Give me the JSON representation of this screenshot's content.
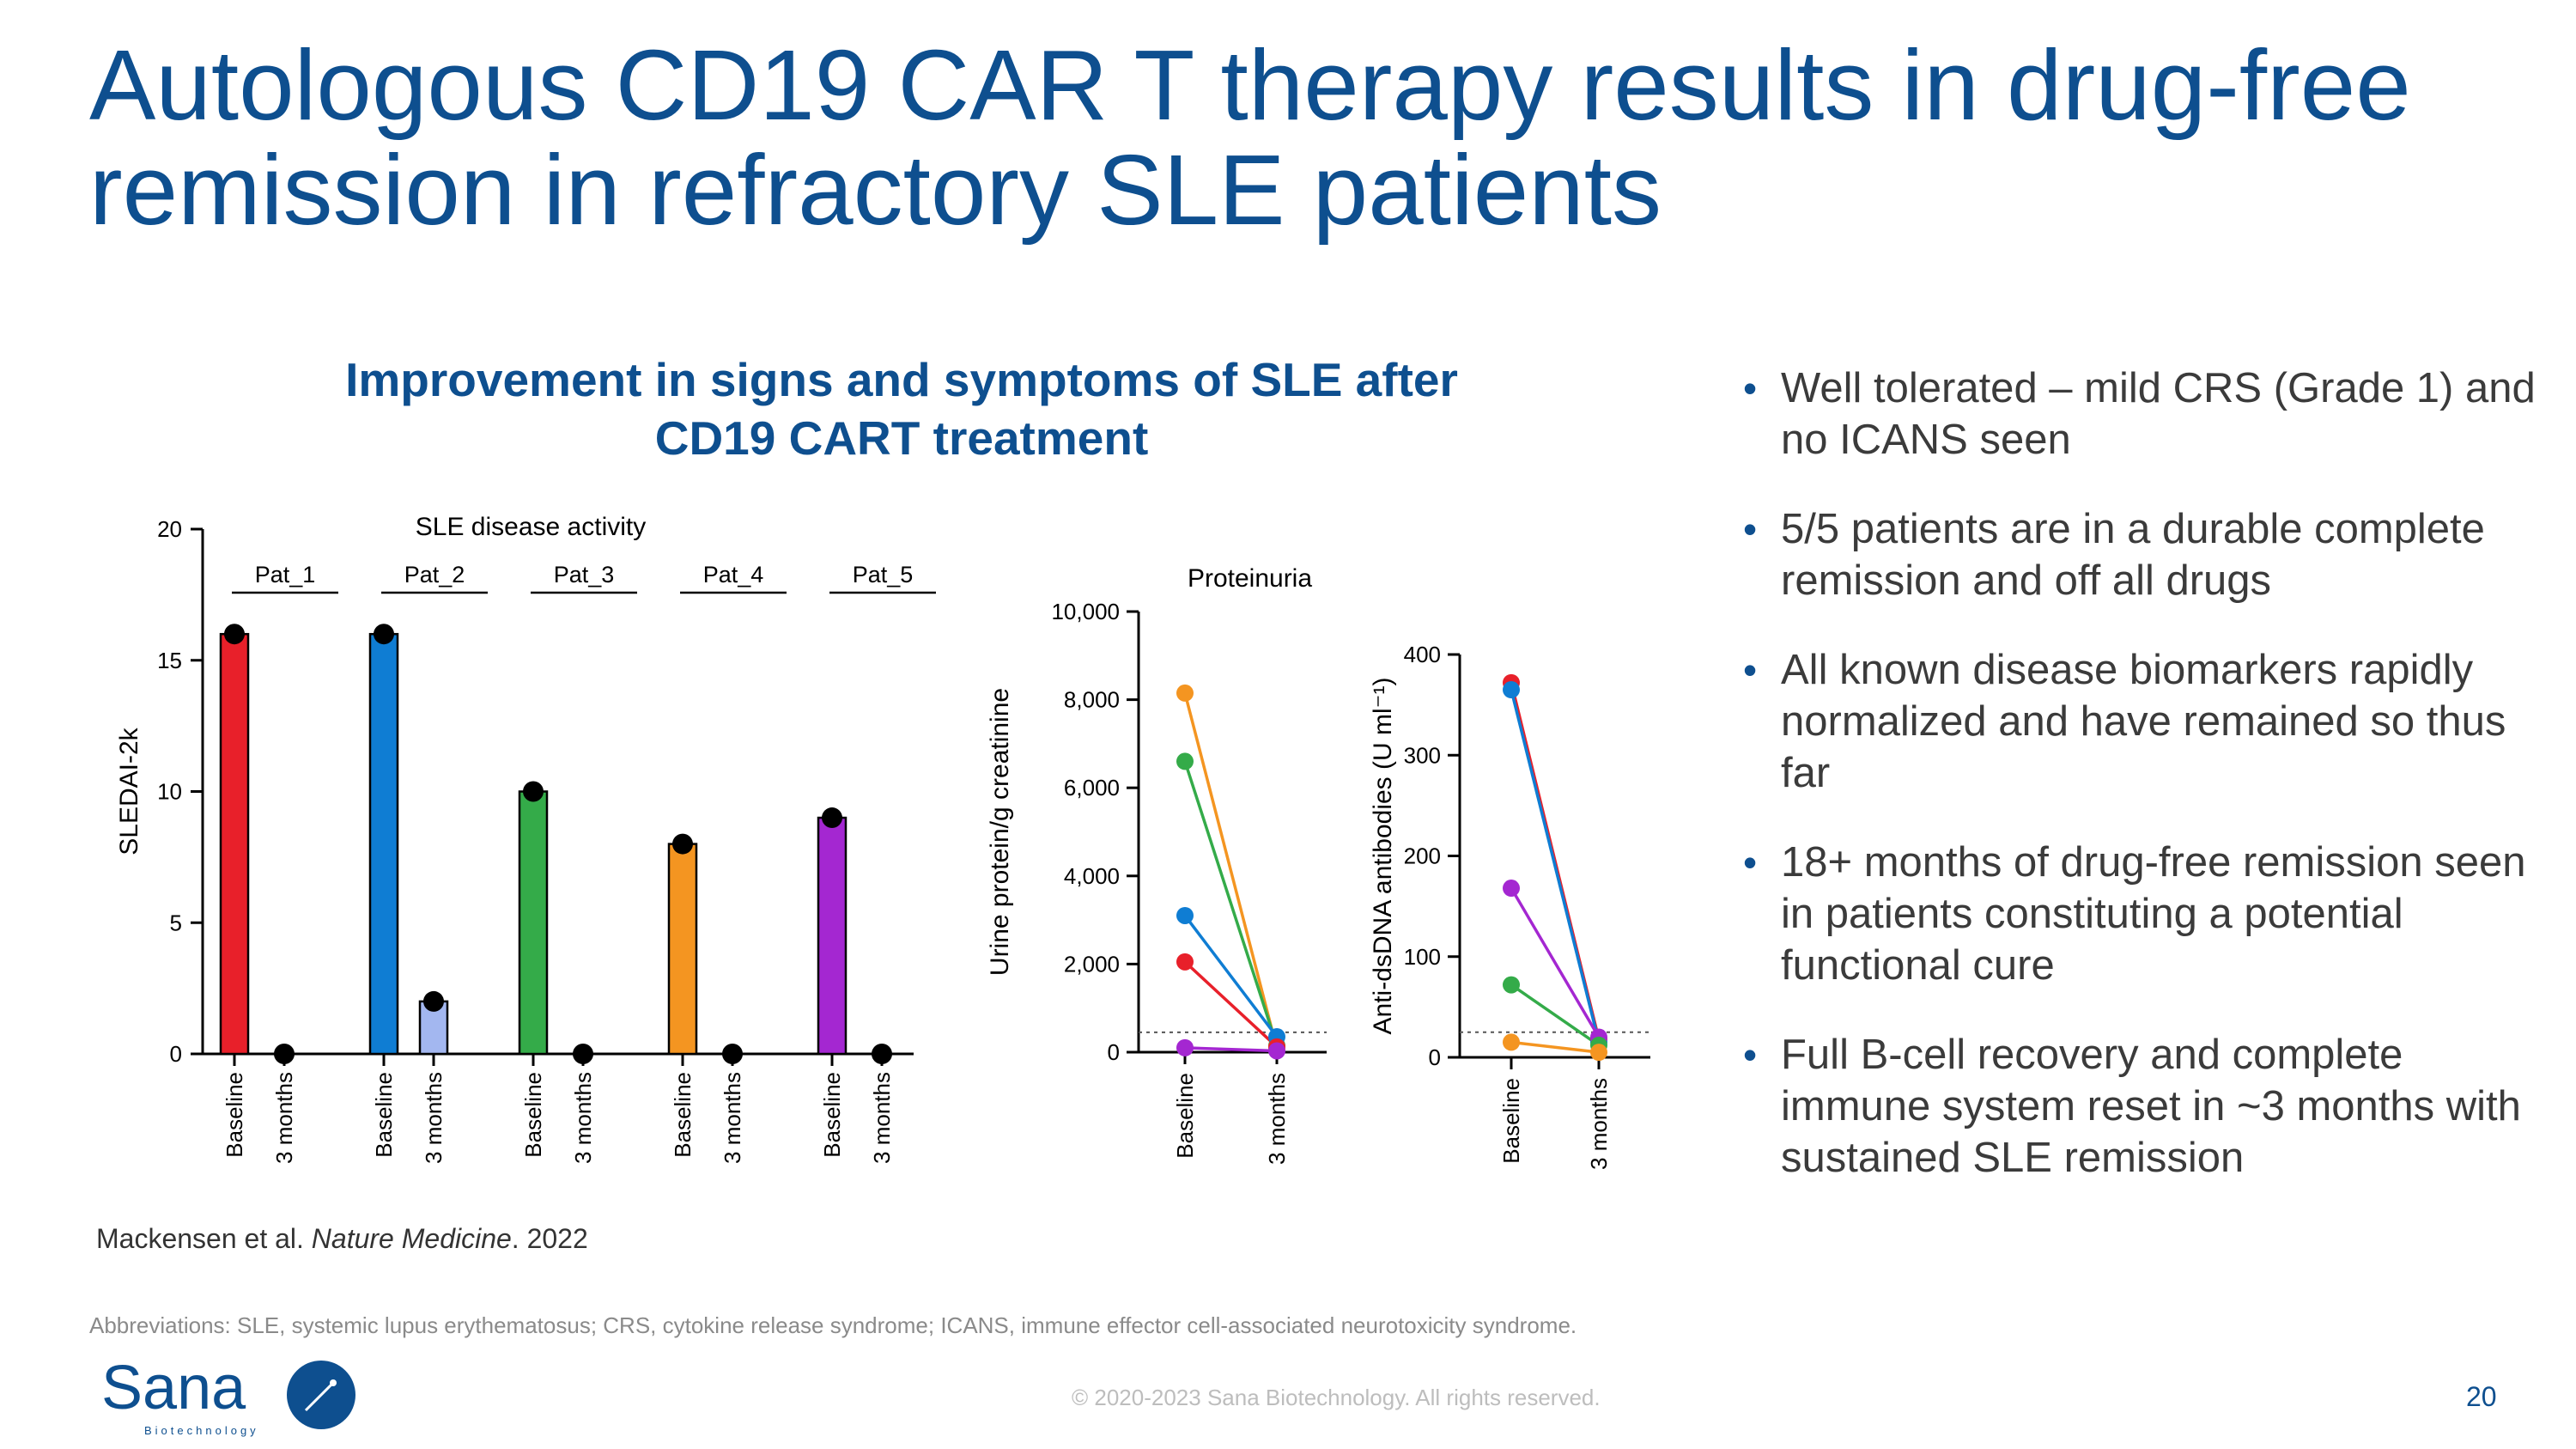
{
  "slide": {
    "title": "Autologous CD19 CAR T therapy results in drug-free remission in refractory SLE patients",
    "chart_heading_line1": "Improvement in signs and symptoms of SLE after",
    "chart_heading_line2": "CD19 CART treatment",
    "citation_authors": "Mackensen et al. ",
    "citation_journal": "Nature Medicine",
    "citation_year": ". 2022",
    "abbreviations": "Abbreviations: SLE, systemic lupus erythematosus; CRS, cytokine release syndrome; ICANS, immune effector cell-associated neurotoxicity syndrome.",
    "copyright": "© 2020-2023 Sana Biotechnology. All rights reserved.",
    "page_number": "20",
    "logo_text": "Sana",
    "logo_subtext": "Biotechnology",
    "bullet_icon": "bullet-dot",
    "bullets": [
      "Well tolerated – mild CRS (Grade 1) and no ICANS seen",
      "5/5 patients are in a durable complete remission and off all drugs",
      "All known disease biomarkers rapidly normalized and have remained so thus far",
      "18+ months of drug-free remission seen in patients constituting a potential functional cure",
      "Full B-cell recovery and complete immune system reset in ~3 months with sustained SLE remission"
    ],
    "colors": {
      "brand_blue": "#0e4f8f",
      "red": "#e8202a",
      "blue": "#0f7dd3",
      "light_blue": "#a3b7f0",
      "green": "#34ab49",
      "orange": "#f49521",
      "purple": "#a427d1"
    }
  },
  "chart_data": [
    {
      "type": "bar",
      "title": "SLE disease activity",
      "ylabel": "SLEDAI-2k",
      "ylim": [
        0,
        20
      ],
      "yticks": [
        0,
        5,
        10,
        15,
        20
      ],
      "timepoints": [
        "Baseline",
        "3 months"
      ],
      "series": [
        {
          "name": "Pat_1",
          "values": [
            16,
            0
          ],
          "colors": [
            "#e8202a",
            "#e8202a"
          ]
        },
        {
          "name": "Pat_2",
          "values": [
            16,
            2
          ],
          "colors": [
            "#0f7dd3",
            "#a3b7f0"
          ]
        },
        {
          "name": "Pat_3",
          "values": [
            10,
            0
          ],
          "colors": [
            "#34ab49",
            "#34ab49"
          ]
        },
        {
          "name": "Pat_4",
          "values": [
            8,
            0
          ],
          "colors": [
            "#f49521",
            "#f49521"
          ]
        },
        {
          "name": "Pat_5",
          "values": [
            9,
            0
          ],
          "colors": [
            "#a427d1",
            "#a427d1"
          ]
        }
      ]
    },
    {
      "type": "line",
      "title": "Proteinuria",
      "ylabel": "Urine protein/g creatinine",
      "ylim": [
        0,
        10000
      ],
      "yticks": [
        0,
        2000,
        4000,
        6000,
        8000,
        10000
      ],
      "ytick_labels": [
        "0",
        "2,000",
        "4,000",
        "6,000",
        "8,000",
        "10,000"
      ],
      "x": [
        "Baseline",
        "3 months"
      ],
      "reference_line": 450,
      "series": [
        {
          "name": "orange",
          "color": "#f49521",
          "values": [
            8150,
            80
          ]
        },
        {
          "name": "green",
          "color": "#34ab49",
          "values": [
            6600,
            150
          ]
        },
        {
          "name": "blue",
          "color": "#0f7dd3",
          "values": [
            3100,
            350
          ]
        },
        {
          "name": "red",
          "color": "#e8202a",
          "values": [
            2050,
            120
          ]
        },
        {
          "name": "purple",
          "color": "#a427d1",
          "values": [
            100,
            30
          ]
        }
      ]
    },
    {
      "type": "line",
      "title": "",
      "ylabel": "Anti-dsDNA antibodies (U ml⁻¹)",
      "ylim": [
        0,
        400
      ],
      "yticks": [
        0,
        100,
        200,
        300,
        400
      ],
      "ytick_labels": [
        "0",
        "100",
        "200",
        "300",
        "400"
      ],
      "x": [
        "Baseline",
        "3 months"
      ],
      "reference_line": 25,
      "series": [
        {
          "name": "red",
          "color": "#e8202a",
          "values": [
            372,
            18
          ]
        },
        {
          "name": "blue",
          "color": "#0f7dd3",
          "values": [
            365,
            15
          ]
        },
        {
          "name": "purple",
          "color": "#a427d1",
          "values": [
            168,
            20
          ]
        },
        {
          "name": "green",
          "color": "#34ab49",
          "values": [
            72,
            12
          ]
        },
        {
          "name": "orange",
          "color": "#f49521",
          "values": [
            15,
            5
          ]
        }
      ]
    }
  ]
}
